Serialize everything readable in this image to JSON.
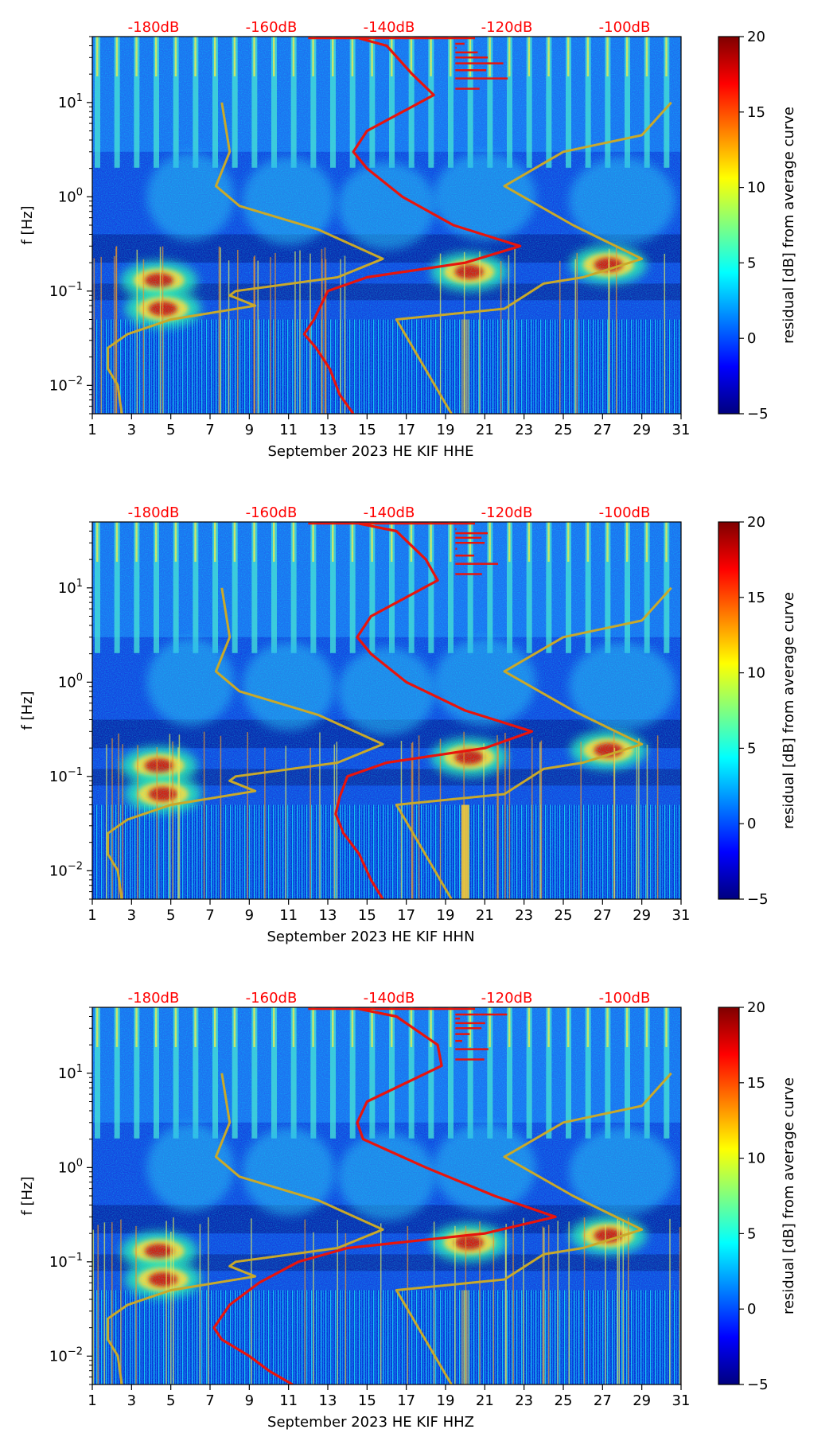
{
  "chart_data": [
    {
      "type": "heatmap",
      "xlabel": "September 2023 HE KIF  HHE",
      "ylabel": "f [Hz]",
      "x_ticks": [
        "1",
        "3",
        "5",
        "7",
        "9",
        "11",
        "13",
        "15",
        "17",
        "19",
        "21",
        "23",
        "25",
        "27",
        "29",
        "31"
      ],
      "xlim": [
        1,
        31
      ],
      "y_ticks": [
        {
          "v": 0.01,
          "base": "10",
          "exp": "−2"
        },
        {
          "v": 0.1,
          "base": "10",
          "exp": "−1"
        },
        {
          "v": 1,
          "base": "10",
          "exp": "0"
        },
        {
          "v": 10,
          "base": "10",
          "exp": "1"
        }
      ],
      "ylim": [
        0.005,
        50
      ],
      "db_ticks": [
        "-180dB",
        "-160dB",
        "-140dB",
        "-120dB",
        "-100dB"
      ],
      "colorbar": {
        "label": "residual [dB] from average curve",
        "range": [
          -5,
          20
        ],
        "ticks": [
          "−5",
          "0",
          "5",
          "10",
          "15",
          "20"
        ]
      },
      "red_curve": [
        [
          48,
          14.6
        ],
        [
          40,
          16.0
        ],
        [
          20,
          17.3
        ],
        [
          12,
          18.4
        ],
        [
          5,
          15.0
        ],
        [
          3,
          14.3
        ],
        [
          2,
          15.0
        ],
        [
          1.0,
          16.8
        ],
        [
          0.5,
          19.4
        ],
        [
          0.3,
          22.8
        ],
        [
          0.2,
          20.0
        ],
        [
          0.14,
          15.0
        ],
        [
          0.1,
          13.0
        ],
        [
          0.05,
          12.3
        ],
        [
          0.035,
          11.8
        ],
        [
          0.025,
          12.4
        ],
        [
          0.015,
          13.1
        ],
        [
          0.008,
          13.6
        ],
        [
          0.005,
          14.3
        ]
      ],
      "olive_curve": [
        [
          10,
          7.6
        ],
        [
          3,
          8.0
        ],
        [
          1.3,
          7.3
        ],
        [
          0.8,
          8.5
        ],
        [
          0.45,
          12.5
        ],
        [
          0.22,
          15.8
        ],
        [
          0.14,
          13.5
        ],
        [
          0.1,
          8.3
        ],
        [
          0.09,
          8.0
        ],
        [
          0.07,
          9.3
        ],
        [
          0.05,
          5.0
        ],
        [
          0.035,
          2.8
        ],
        [
          0.025,
          1.8
        ],
        [
          0.015,
          1.8
        ],
        [
          0.01,
          2.3
        ],
        [
          0.005,
          2.5
        ]
      ],
      "olive_curve2": [
        [
          10,
          30.5
        ],
        [
          4.5,
          29.0
        ],
        [
          3,
          25.0
        ],
        [
          1.3,
          22.0
        ],
        [
          0.5,
          25.5
        ],
        [
          0.22,
          29.0
        ],
        [
          0.14,
          26.0
        ],
        [
          0.12,
          24.0
        ],
        [
          0.065,
          22.0
        ],
        [
          0.05,
          16.5
        ],
        [
          0.005,
          19.3
        ]
      ]
    },
    {
      "type": "heatmap",
      "xlabel": "September 2023 HE KIF  HHN",
      "ylabel": "f [Hz]",
      "x_ticks": [
        "1",
        "3",
        "5",
        "7",
        "9",
        "11",
        "13",
        "15",
        "17",
        "19",
        "21",
        "23",
        "25",
        "27",
        "29",
        "31"
      ],
      "xlim": [
        1,
        31
      ],
      "y_ticks": [
        {
          "v": 0.01,
          "base": "10",
          "exp": "−2"
        },
        {
          "v": 0.1,
          "base": "10",
          "exp": "−1"
        },
        {
          "v": 1,
          "base": "10",
          "exp": "0"
        },
        {
          "v": 10,
          "base": "10",
          "exp": "1"
        }
      ],
      "ylim": [
        0.005,
        50
      ],
      "db_ticks": [
        "-180dB",
        "-160dB",
        "-140dB",
        "-120dB",
        "-100dB"
      ],
      "colorbar": {
        "label": "residual [dB] from average curve",
        "range": [
          -5,
          20
        ],
        "ticks": [
          "−5",
          "0",
          "5",
          "10",
          "15",
          "20"
        ]
      },
      "red_curve": [
        [
          48,
          14.6
        ],
        [
          40,
          16.5
        ],
        [
          20,
          18.0
        ],
        [
          12,
          18.6
        ],
        [
          5,
          15.2
        ],
        [
          3,
          14.5
        ],
        [
          2,
          15.2
        ],
        [
          1.0,
          17.0
        ],
        [
          0.5,
          20.0
        ],
        [
          0.3,
          23.4
        ],
        [
          0.2,
          21.0
        ],
        [
          0.14,
          16.0
        ],
        [
          0.1,
          14.0
        ],
        [
          0.06,
          13.6
        ],
        [
          0.04,
          13.4
        ],
        [
          0.025,
          13.8
        ],
        [
          0.015,
          14.6
        ],
        [
          0.008,
          15.2
        ],
        [
          0.005,
          15.8
        ]
      ],
      "olive_curve": [
        [
          10,
          7.6
        ],
        [
          3,
          8.0
        ],
        [
          1.3,
          7.3
        ],
        [
          0.8,
          8.5
        ],
        [
          0.45,
          12.5
        ],
        [
          0.22,
          15.8
        ],
        [
          0.14,
          13.5
        ],
        [
          0.1,
          8.3
        ],
        [
          0.09,
          8.0
        ],
        [
          0.07,
          9.3
        ],
        [
          0.05,
          5.0
        ],
        [
          0.035,
          2.8
        ],
        [
          0.025,
          1.8
        ],
        [
          0.015,
          1.8
        ],
        [
          0.01,
          2.3
        ],
        [
          0.005,
          2.5
        ]
      ],
      "olive_curve2": [
        [
          10,
          30.5
        ],
        [
          4.5,
          29.0
        ],
        [
          3,
          25.0
        ],
        [
          1.3,
          22.0
        ],
        [
          0.5,
          25.5
        ],
        [
          0.22,
          29.0
        ],
        [
          0.14,
          26.0
        ],
        [
          0.12,
          24.0
        ],
        [
          0.065,
          22.0
        ],
        [
          0.05,
          16.5
        ],
        [
          0.005,
          19.3
        ]
      ]
    },
    {
      "type": "heatmap",
      "xlabel": "September 2023 HE KIF  HHZ",
      "ylabel": "f [Hz]",
      "x_ticks": [
        "1",
        "3",
        "5",
        "7",
        "9",
        "11",
        "13",
        "15",
        "17",
        "19",
        "21",
        "23",
        "25",
        "27",
        "29",
        "31"
      ],
      "xlim": [
        1,
        31
      ],
      "y_ticks": [
        {
          "v": 0.01,
          "base": "10",
          "exp": "−2"
        },
        {
          "v": 0.1,
          "base": "10",
          "exp": "−1"
        },
        {
          "v": 1,
          "base": "10",
          "exp": "0"
        },
        {
          "v": 10,
          "base": "10",
          "exp": "1"
        }
      ],
      "ylim": [
        0.005,
        50
      ],
      "db_ticks": [
        "-180dB",
        "-160dB",
        "-140dB",
        "-120dB",
        "-100dB"
      ],
      "colorbar": {
        "label": "residual [dB] from average curve",
        "range": [
          -5,
          20
        ],
        "ticks": [
          "−5",
          "0",
          "5",
          "10",
          "15",
          "20"
        ]
      },
      "red_curve": [
        [
          48,
          14.6
        ],
        [
          40,
          16.5
        ],
        [
          20,
          18.6
        ],
        [
          12,
          18.8
        ],
        [
          5,
          15.0
        ],
        [
          3,
          14.5
        ],
        [
          2,
          14.8
        ],
        [
          1.0,
          18.0
        ],
        [
          0.5,
          21.5
        ],
        [
          0.3,
          24.6
        ],
        [
          0.2,
          21.0
        ],
        [
          0.14,
          14.0
        ],
        [
          0.1,
          11.5
        ],
        [
          0.06,
          9.5
        ],
        [
          0.035,
          8.0
        ],
        [
          0.02,
          7.2
        ],
        [
          0.015,
          7.6
        ],
        [
          0.01,
          9.0
        ],
        [
          0.007,
          10.0
        ],
        [
          0.005,
          11.2
        ]
      ],
      "olive_curve": [
        [
          10,
          7.6
        ],
        [
          3,
          8.0
        ],
        [
          1.3,
          7.3
        ],
        [
          0.8,
          8.5
        ],
        [
          0.45,
          12.5
        ],
        [
          0.22,
          15.8
        ],
        [
          0.14,
          13.5
        ],
        [
          0.1,
          8.3
        ],
        [
          0.09,
          8.0
        ],
        [
          0.07,
          9.3
        ],
        [
          0.05,
          5.0
        ],
        [
          0.035,
          2.8
        ],
        [
          0.025,
          1.8
        ],
        [
          0.015,
          1.8
        ],
        [
          0.01,
          2.3
        ],
        [
          0.005,
          2.5
        ]
      ],
      "olive_curve2": [
        [
          10,
          30.5
        ],
        [
          4.5,
          29.0
        ],
        [
          3,
          25.0
        ],
        [
          1.3,
          22.0
        ],
        [
          0.5,
          25.5
        ],
        [
          0.22,
          29.0
        ],
        [
          0.14,
          26.0
        ],
        [
          0.12,
          24.0
        ],
        [
          0.065,
          22.0
        ],
        [
          0.05,
          16.5
        ],
        [
          0.005,
          19.3
        ]
      ]
    }
  ]
}
